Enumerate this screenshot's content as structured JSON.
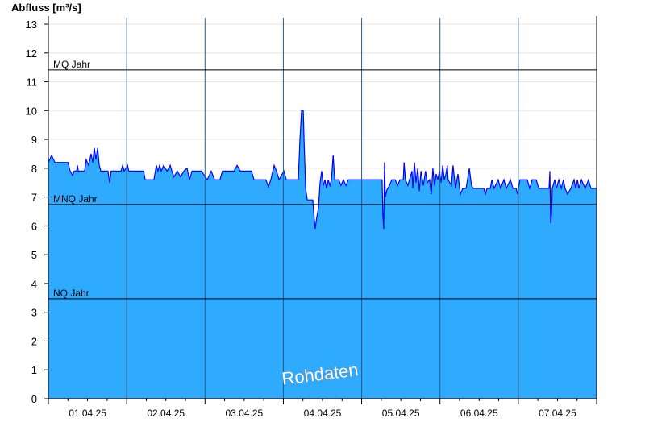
{
  "chart_data": {
    "type": "area",
    "ylabel": "Abfluss [m³/s]",
    "ylim": [
      0,
      13
    ],
    "xlim": [
      "2025-04-01T00:00",
      "2025-04-08T00:00"
    ],
    "yticks": [
      "0",
      "1",
      "2",
      "3",
      "4",
      "5",
      "6",
      "7",
      "8",
      "9",
      "10",
      "11",
      "12",
      "13"
    ],
    "xtick_labels": [
      "01.04.25",
      "02.04.25",
      "03.04.25",
      "04.04.25",
      "05.04.25",
      "06.04.25",
      "07.04.25"
    ],
    "grid": true,
    "watermark": "Rohdaten",
    "colors": {
      "fill": "#2eaaff",
      "line": "#0000ff",
      "day_lines": "#2a5a80"
    },
    "reference_lines": [
      {
        "label": "MQ Jahr",
        "value": 11.41
      },
      {
        "label": "MNQ Jahr",
        "value": 6.74
      },
      {
        "label": "NQ Jahr",
        "value": 3.47
      }
    ],
    "series": [
      {
        "points": [
          [
            "2025-04-01T00:00",
            8.2
          ],
          [
            "2025-04-01T01:00",
            8.45
          ],
          [
            "2025-04-01T02:00",
            8.2
          ],
          [
            "2025-04-01T06:00",
            8.2
          ],
          [
            "2025-04-01T06:40",
            7.9
          ],
          [
            "2025-04-01T07:25",
            7.75
          ],
          [
            "2025-04-01T07:55",
            7.9
          ],
          [
            "2025-04-01T08:40",
            7.9
          ],
          [
            "2025-04-01T08:55",
            8.1
          ],
          [
            "2025-04-01T09:10",
            7.9
          ],
          [
            "2025-04-01T11:05",
            7.9
          ],
          [
            "2025-04-01T11:35",
            8.3
          ],
          [
            "2025-04-01T12:20",
            8.1
          ],
          [
            "2025-04-01T13:05",
            8.5
          ],
          [
            "2025-04-01T13:35",
            8.2
          ],
          [
            "2025-04-01T14:05",
            8.7
          ],
          [
            "2025-04-01T14:35",
            8.3
          ],
          [
            "2025-04-01T15:05",
            8.7
          ],
          [
            "2025-04-01T15:35",
            8.1
          ],
          [
            "2025-04-01T16:05",
            7.9
          ],
          [
            "2025-04-01T18:15",
            7.9
          ],
          [
            "2025-04-01T18:45",
            7.5
          ],
          [
            "2025-04-01T19:15",
            7.9
          ],
          [
            "2025-04-01T22:15",
            7.9
          ],
          [
            "2025-04-01T22:45",
            8.1
          ],
          [
            "2025-04-01T23:15",
            7.9
          ],
          [
            "2025-04-02T00:15",
            8.1
          ],
          [
            "2025-04-02T00:40",
            7.9
          ],
          [
            "2025-04-02T05:10",
            7.9
          ],
          [
            "2025-04-02T05:40",
            7.6
          ],
          [
            "2025-04-02T08:20",
            7.6
          ],
          [
            "2025-04-02T09:05",
            8.1
          ],
          [
            "2025-04-02T09:35",
            7.9
          ],
          [
            "2025-04-02T10:05",
            8.1
          ],
          [
            "2025-04-02T10:35",
            7.9
          ],
          [
            "2025-04-02T11:20",
            8.1
          ],
          [
            "2025-04-02T12:20",
            7.9
          ],
          [
            "2025-04-02T13:20",
            8.1
          ],
          [
            "2025-04-02T13:50",
            7.9
          ],
          [
            "2025-04-02T14:30",
            7.7
          ],
          [
            "2025-04-02T15:30",
            7.9
          ],
          [
            "2025-04-02T16:30",
            7.7
          ],
          [
            "2025-04-02T17:30",
            7.9
          ],
          [
            "2025-04-02T18:30",
            8.0
          ],
          [
            "2025-04-02T19:15",
            7.6
          ],
          [
            "2025-04-02T20:00",
            7.9
          ],
          [
            "2025-04-02T22:55",
            7.9
          ],
          [
            "2025-04-03T00:40",
            7.6
          ],
          [
            "2025-04-03T01:55",
            7.9
          ],
          [
            "2025-04-03T02:55",
            7.6
          ],
          [
            "2025-04-03T04:35",
            7.6
          ],
          [
            "2025-04-03T05:20",
            7.9
          ],
          [
            "2025-04-03T08:50",
            7.9
          ],
          [
            "2025-04-03T09:50",
            8.1
          ],
          [
            "2025-04-03T10:50",
            7.9
          ],
          [
            "2025-04-03T14:15",
            7.9
          ],
          [
            "2025-04-03T15:00",
            7.6
          ],
          [
            "2025-04-03T18:40",
            7.6
          ],
          [
            "2025-04-03T19:25",
            7.35
          ],
          [
            "2025-04-03T20:10",
            7.6
          ],
          [
            "2025-04-03T21:10",
            8.1
          ],
          [
            "2025-04-03T21:55",
            7.9
          ],
          [
            "2025-04-03T22:40",
            7.6
          ],
          [
            "2025-04-04T00:10",
            7.9
          ],
          [
            "2025-04-04T00:55",
            7.6
          ],
          [
            "2025-04-04T04:35",
            7.6
          ],
          [
            "2025-04-04T05:05",
            9.0
          ],
          [
            "2025-04-04T05:35",
            10.0
          ],
          [
            "2025-04-04T06:05",
            10.0
          ],
          [
            "2025-04-04T06:20",
            9.0
          ],
          [
            "2025-04-04T06:50",
            7.3
          ],
          [
            "2025-04-04T07:20",
            6.9
          ],
          [
            "2025-04-04T09:00",
            6.9
          ],
          [
            "2025-04-04T09:30",
            6.2
          ],
          [
            "2025-04-04T09:45",
            5.9
          ],
          [
            "2025-04-04T10:15",
            6.3
          ],
          [
            "2025-04-04T10:45",
            6.6
          ],
          [
            "2025-04-04T11:15",
            7.5
          ],
          [
            "2025-04-04T11:45",
            7.9
          ],
          [
            "2025-04-04T12:15",
            7.4
          ],
          [
            "2025-04-04T12:45",
            7.6
          ],
          [
            "2025-04-04T13:15",
            7.3
          ],
          [
            "2025-04-04T13:45",
            7.6
          ],
          [
            "2025-04-04T14:15",
            7.4
          ],
          [
            "2025-04-04T14:45",
            7.6
          ],
          [
            "2025-04-04T15:15",
            8.45
          ],
          [
            "2025-04-04T15:45",
            7.6
          ],
          [
            "2025-04-04T17:00",
            7.6
          ],
          [
            "2025-04-04T17:40",
            7.4
          ],
          [
            "2025-04-04T18:25",
            7.6
          ],
          [
            "2025-04-04T19:10",
            7.4
          ],
          [
            "2025-04-04T19:55",
            7.6
          ],
          [
            "2025-04-05T06:15",
            7.6
          ],
          [
            "2025-04-05T06:30",
            6.4
          ],
          [
            "2025-04-05T06:45",
            5.9
          ],
          [
            "2025-04-05T07:00",
            8.2
          ],
          [
            "2025-04-05T07:15",
            7.0
          ],
          [
            "2025-04-05T07:45",
            7.25
          ],
          [
            "2025-04-05T08:30",
            7.4
          ],
          [
            "2025-04-05T09:15",
            7.6
          ],
          [
            "2025-04-05T10:15",
            7.6
          ],
          [
            "2025-04-05T11:00",
            7.4
          ],
          [
            "2025-04-05T11:45",
            7.6
          ],
          [
            "2025-04-05T12:45",
            7.6
          ],
          [
            "2025-04-05T13:00",
            8.2
          ],
          [
            "2025-04-05T13:25",
            7.6
          ],
          [
            "2025-04-05T14:10",
            7.4
          ],
          [
            "2025-04-05T14:40",
            7.6
          ],
          [
            "2025-04-05T15:25",
            7.9
          ],
          [
            "2025-04-05T15:40",
            7.3
          ],
          [
            "2025-04-05T16:10",
            8.2
          ],
          [
            "2025-04-05T16:40",
            7.5
          ],
          [
            "2025-04-05T17:10",
            8.0
          ],
          [
            "2025-04-05T17:40",
            7.2
          ],
          [
            "2025-04-05T18:10",
            7.9
          ],
          [
            "2025-04-05T18:55",
            7.4
          ],
          [
            "2025-04-05T19:35",
            7.9
          ],
          [
            "2025-04-05T20:05",
            7.5
          ],
          [
            "2025-04-05T20:50",
            7.6
          ],
          [
            "2025-04-05T21:20",
            7.1
          ],
          [
            "2025-04-05T21:50",
            8.0
          ],
          [
            "2025-04-05T22:20",
            7.4
          ],
          [
            "2025-04-05T22:50",
            7.8
          ],
          [
            "2025-04-05T23:20",
            7.6
          ],
          [
            "2025-04-05T23:50",
            7.9
          ],
          [
            "2025-04-06T00:20",
            7.5
          ],
          [
            "2025-04-06T00:50",
            8.1
          ],
          [
            "2025-04-06T01:20",
            7.6
          ],
          [
            "2025-04-06T01:50",
            7.8
          ],
          [
            "2025-04-06T02:15",
            8.1
          ],
          [
            "2025-04-06T02:30",
            7.6
          ],
          [
            "2025-04-06T03:30",
            7.4
          ],
          [
            "2025-04-06T04:00",
            8.1
          ],
          [
            "2025-04-06T04:45",
            7.3
          ],
          [
            "2025-04-06T05:30",
            7.8
          ],
          [
            "2025-04-06T06:15",
            7.1
          ],
          [
            "2025-04-06T07:00",
            7.3
          ],
          [
            "2025-04-06T08:00",
            7.3
          ],
          [
            "2025-04-06T09:00",
            8.0
          ],
          [
            "2025-04-06T09:40",
            7.4
          ],
          [
            "2025-04-06T10:10",
            7.3
          ],
          [
            "2025-04-06T13:25",
            7.3
          ],
          [
            "2025-04-06T13:55",
            7.1
          ],
          [
            "2025-04-06T14:25",
            7.3
          ],
          [
            "2025-04-06T15:25",
            7.3
          ],
          [
            "2025-04-06T15:55",
            7.6
          ],
          [
            "2025-04-06T16:35",
            7.3
          ],
          [
            "2025-04-06T17:50",
            7.6
          ],
          [
            "2025-04-06T18:35",
            7.3
          ],
          [
            "2025-04-06T19:35",
            7.6
          ],
          [
            "2025-04-06T20:20",
            7.3
          ],
          [
            "2025-04-06T21:35",
            7.6
          ],
          [
            "2025-04-06T22:20",
            7.3
          ],
          [
            "2025-04-06T23:20",
            7.3
          ],
          [
            "2025-04-06T23:45",
            7.1
          ],
          [
            "2025-04-07T00:30",
            7.6
          ],
          [
            "2025-04-07T02:45",
            7.6
          ],
          [
            "2025-04-07T03:30",
            7.3
          ],
          [
            "2025-04-07T04:15",
            7.6
          ],
          [
            "2025-04-07T05:30",
            7.6
          ],
          [
            "2025-04-07T06:15",
            7.3
          ],
          [
            "2025-04-07T09:25",
            7.3
          ],
          [
            "2025-04-07T09:40",
            7.9
          ],
          [
            "2025-04-07T09:55",
            6.1
          ],
          [
            "2025-04-07T10:10",
            6.4
          ],
          [
            "2025-04-07T10:25",
            7.3
          ],
          [
            "2025-04-07T11:10",
            7.6
          ],
          [
            "2025-04-07T11:40",
            7.3
          ],
          [
            "2025-04-07T12:25",
            7.6
          ],
          [
            "2025-04-07T13:10",
            7.3
          ],
          [
            "2025-04-07T13:50",
            7.6
          ],
          [
            "2025-04-07T14:20",
            7.3
          ],
          [
            "2025-04-07T15:05",
            7.1
          ],
          [
            "2025-04-07T16:05",
            7.3
          ],
          [
            "2025-04-07T17:05",
            7.6
          ],
          [
            "2025-04-07T17:35",
            7.3
          ],
          [
            "2025-04-07T18:05",
            7.6
          ],
          [
            "2025-04-07T18:35",
            7.3
          ],
          [
            "2025-04-07T19:20",
            7.6
          ],
          [
            "2025-04-07T20:30",
            7.3
          ],
          [
            "2025-04-07T21:30",
            7.6
          ],
          [
            "2025-04-07T22:15",
            7.3
          ],
          [
            "2025-04-08T00:00",
            7.3
          ]
        ]
      }
    ]
  }
}
